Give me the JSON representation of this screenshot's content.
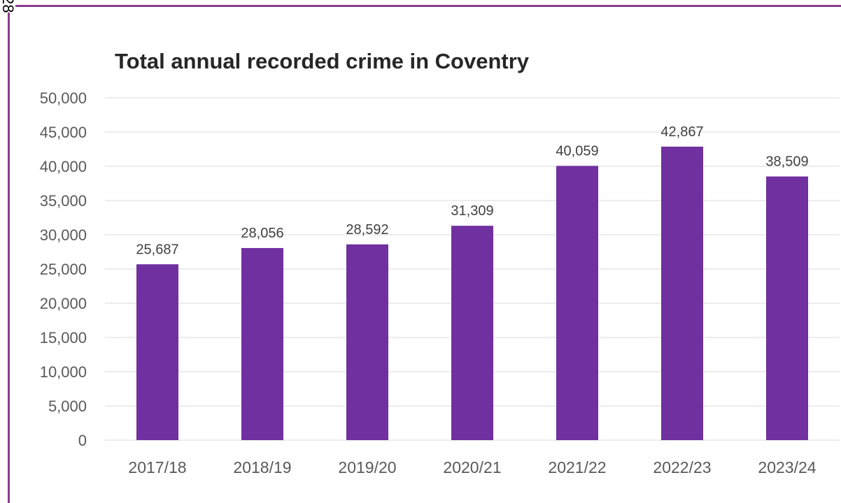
{
  "page": {
    "page_number": "28"
  },
  "chart_data": {
    "type": "bar",
    "title": "Total annual recorded crime in Coventry",
    "xlabel": "",
    "ylabel": "",
    "categories": [
      "2017/18",
      "2018/19",
      "2019/20",
      "2020/21",
      "2021/22",
      "2022/23",
      "2023/24"
    ],
    "values": [
      25687,
      28056,
      28592,
      31309,
      40059,
      42867,
      38509
    ],
    "data_labels": [
      "25,687",
      "28,056",
      "28,592",
      "31,309",
      "40,059",
      "42,867",
      "38,509"
    ],
    "ylim": [
      0,
      50000
    ],
    "y_ticks": [
      "0",
      "5,000",
      "10,000",
      "15,000",
      "20,000",
      "25,000",
      "30,000",
      "35,000",
      "40,000",
      "45,000",
      "50,000"
    ],
    "y_tick_values": [
      0,
      5000,
      10000,
      15000,
      20000,
      25000,
      30000,
      35000,
      40000,
      45000,
      50000
    ],
    "grid": true,
    "legend": "none",
    "colors": {
      "bar": "#7030a0",
      "grid": "#d9d9d9",
      "frame": "#8a3d8f"
    }
  }
}
